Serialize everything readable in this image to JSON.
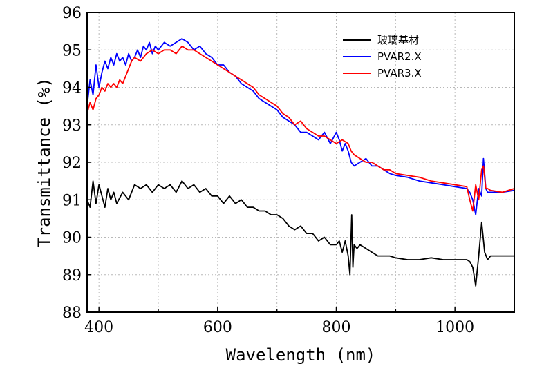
{
  "chart_data": {
    "type": "line",
    "title": "",
    "xlabel": "Wavelength (nm)",
    "ylabel": "Transmittance (%)",
    "xlim": [
      380,
      1100
    ],
    "ylim": [
      88,
      96
    ],
    "x_ticks": [
      400,
      600,
      800,
      1000
    ],
    "x_tick_labels": [
      "400",
      "600",
      "800",
      "1000"
    ],
    "y_ticks": [
      88,
      89,
      90,
      91,
      92,
      93,
      94,
      95,
      96
    ],
    "y_tick_labels": [
      "88",
      "89",
      "90",
      "91",
      "92",
      "93",
      "94",
      "95",
      "96"
    ],
    "grid": true,
    "legend_position": "top-right",
    "series": [
      {
        "name": "玻璃基材",
        "color": "#000000",
        "x": [
          380,
          385,
          390,
          395,
          400,
          405,
          410,
          415,
          420,
          425,
          430,
          440,
          450,
          460,
          470,
          480,
          490,
          500,
          510,
          520,
          530,
          540,
          550,
          560,
          570,
          580,
          590,
          600,
          610,
          620,
          630,
          640,
          650,
          660,
          670,
          680,
          690,
          700,
          710,
          720,
          730,
          740,
          750,
          760,
          770,
          780,
          790,
          800,
          805,
          810,
          815,
          820,
          823,
          826,
          828,
          830,
          835,
          840,
          850,
          860,
          870,
          880,
          890,
          900,
          920,
          940,
          960,
          980,
          1000,
          1020,
          1025,
          1030,
          1035,
          1040,
          1045,
          1050,
          1055,
          1060,
          1080,
          1100
        ],
        "values": [
          91.0,
          90.8,
          91.5,
          90.9,
          91.4,
          91.1,
          90.8,
          91.3,
          91.0,
          91.2,
          90.9,
          91.2,
          91.0,
          91.4,
          91.3,
          91.4,
          91.2,
          91.4,
          91.3,
          91.4,
          91.2,
          91.5,
          91.3,
          91.4,
          91.2,
          91.3,
          91.1,
          91.1,
          90.9,
          91.1,
          90.9,
          91.0,
          90.8,
          90.8,
          90.7,
          90.7,
          90.6,
          90.6,
          90.5,
          90.3,
          90.2,
          90.3,
          90.1,
          90.1,
          89.9,
          90.0,
          89.8,
          89.8,
          89.9,
          89.6,
          89.9,
          89.5,
          89.0,
          90.6,
          89.2,
          89.8,
          89.7,
          89.8,
          89.7,
          89.6,
          89.5,
          89.5,
          89.5,
          89.45,
          89.4,
          89.4,
          89.45,
          89.4,
          89.4,
          89.4,
          89.35,
          89.2,
          88.7,
          89.5,
          90.4,
          89.6,
          89.4,
          89.5,
          89.5,
          89.5
        ]
      },
      {
        "name": "PVAR2.X",
        "color": "#0000ff",
        "x": [
          380,
          385,
          390,
          395,
          400,
          405,
          410,
          415,
          420,
          425,
          430,
          435,
          440,
          445,
          450,
          455,
          460,
          465,
          470,
          475,
          480,
          485,
          490,
          495,
          500,
          510,
          520,
          530,
          540,
          550,
          560,
          570,
          580,
          590,
          600,
          610,
          620,
          630,
          640,
          650,
          660,
          670,
          680,
          690,
          700,
          710,
          720,
          730,
          740,
          750,
          760,
          770,
          780,
          790,
          800,
          805,
          810,
          815,
          820,
          825,
          830,
          840,
          850,
          860,
          870,
          880,
          890,
          900,
          920,
          940,
          960,
          980,
          1000,
          1020,
          1025,
          1030,
          1035,
          1040,
          1045,
          1048,
          1052,
          1055,
          1060,
          1080,
          1100
        ],
        "values": [
          93.5,
          94.2,
          93.8,
          94.6,
          94.0,
          94.4,
          94.7,
          94.5,
          94.8,
          94.6,
          94.9,
          94.7,
          94.8,
          94.6,
          94.9,
          94.7,
          94.8,
          95.0,
          94.8,
          95.1,
          95.0,
          95.2,
          94.9,
          95.1,
          95.0,
          95.2,
          95.1,
          95.2,
          95.3,
          95.2,
          95.0,
          95.1,
          94.9,
          94.8,
          94.6,
          94.6,
          94.4,
          94.3,
          94.1,
          94.0,
          93.9,
          93.7,
          93.6,
          93.5,
          93.4,
          93.2,
          93.1,
          93.0,
          92.8,
          92.8,
          92.7,
          92.6,
          92.8,
          92.5,
          92.8,
          92.6,
          92.3,
          92.5,
          92.3,
          92.0,
          91.9,
          92.0,
          92.1,
          91.9,
          91.9,
          91.8,
          91.7,
          91.65,
          91.6,
          91.5,
          91.45,
          91.4,
          91.35,
          91.3,
          91.2,
          91.0,
          90.6,
          91.3,
          91.1,
          92.1,
          91.3,
          91.2,
          91.2,
          91.2,
          91.25
        ]
      },
      {
        "name": "PVAR3.X",
        "color": "#ff0000",
        "x": [
          380,
          385,
          390,
          395,
          400,
          405,
          410,
          415,
          420,
          425,
          430,
          435,
          440,
          445,
          450,
          455,
          460,
          470,
          480,
          490,
          500,
          510,
          520,
          530,
          540,
          550,
          560,
          570,
          580,
          590,
          600,
          610,
          620,
          630,
          640,
          650,
          660,
          670,
          680,
          690,
          700,
          710,
          720,
          730,
          740,
          750,
          760,
          770,
          780,
          790,
          800,
          810,
          820,
          825,
          830,
          840,
          850,
          860,
          870,
          880,
          890,
          900,
          920,
          940,
          960,
          980,
          1000,
          1020,
          1025,
          1030,
          1035,
          1040,
          1045,
          1048,
          1052,
          1055,
          1060,
          1080,
          1100
        ],
        "values": [
          93.3,
          93.6,
          93.4,
          93.7,
          93.8,
          94.0,
          93.9,
          94.1,
          94.0,
          94.1,
          94.0,
          94.2,
          94.1,
          94.3,
          94.5,
          94.7,
          94.8,
          94.7,
          94.9,
          95.0,
          94.9,
          95.0,
          95.0,
          94.9,
          95.1,
          95.0,
          95.0,
          94.9,
          94.8,
          94.7,
          94.6,
          94.5,
          94.4,
          94.3,
          94.2,
          94.1,
          94.0,
          93.8,
          93.7,
          93.6,
          93.5,
          93.3,
          93.2,
          93.0,
          93.1,
          92.9,
          92.8,
          92.7,
          92.7,
          92.6,
          92.5,
          92.6,
          92.5,
          92.3,
          92.2,
          92.1,
          92.0,
          92.0,
          91.9,
          91.8,
          91.8,
          91.7,
          91.65,
          91.6,
          91.5,
          91.45,
          91.4,
          91.35,
          91.0,
          90.7,
          91.4,
          91.0,
          91.8,
          91.9,
          91.3,
          91.3,
          91.25,
          91.2,
          91.3
        ]
      }
    ]
  }
}
